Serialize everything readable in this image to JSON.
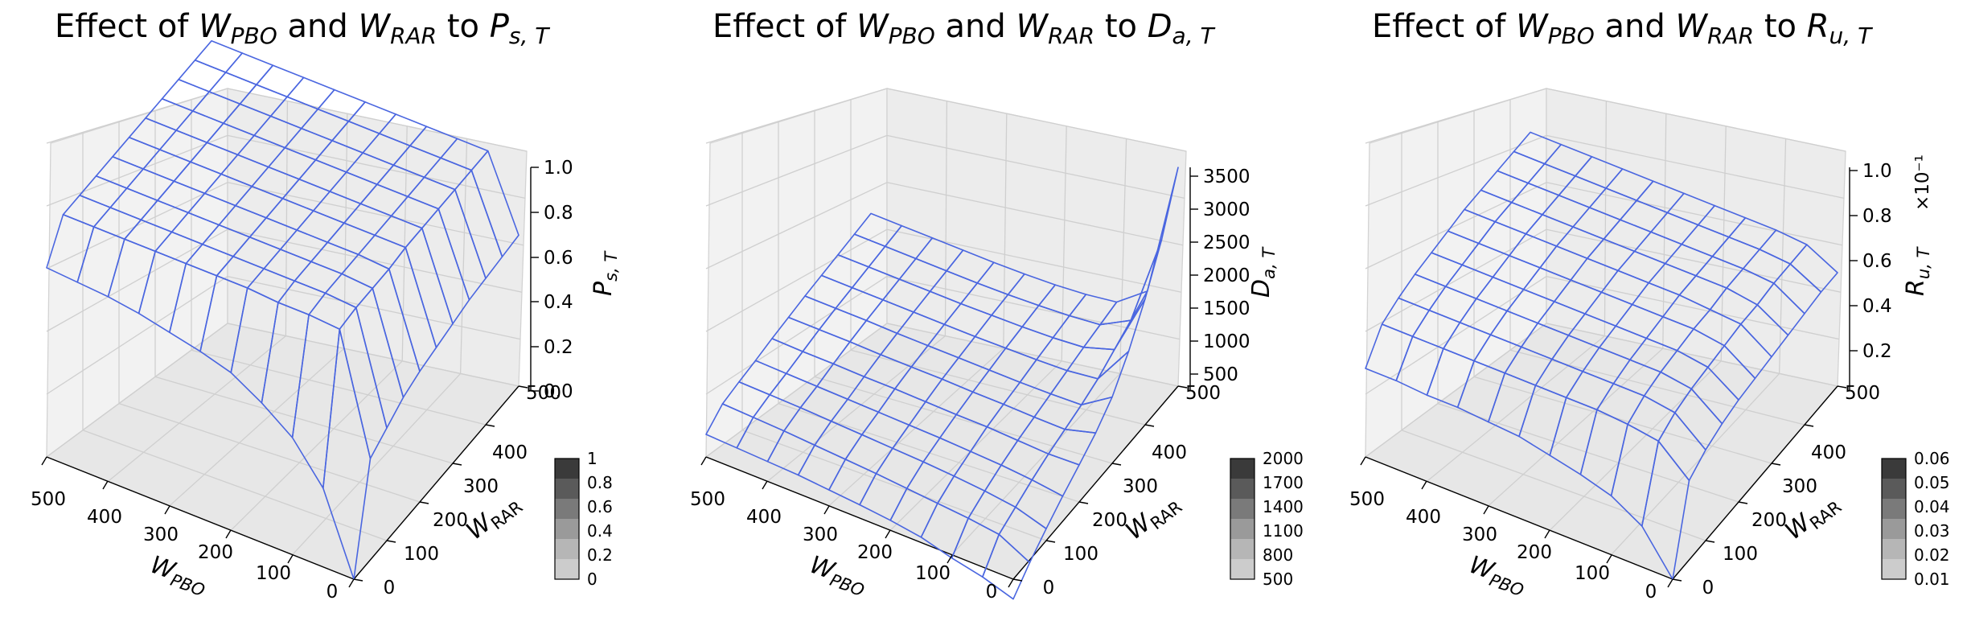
{
  "charts": [
    {
      "title_prefix": "Effect of ",
      "title_w1": "W",
      "title_w1_sub": "PBO",
      "title_mid": " and ",
      "title_w2": "W",
      "title_w2_sub": "RAR",
      "title_to": " to ",
      "title_var": "P",
      "title_var_sub": "s, T",
      "xlabel_base": "W",
      "xlabel_sub": "PBO",
      "ylabel_base": "W",
      "ylabel_sub": "RAR",
      "zlabel_base": "P",
      "zlabel_sub": "s, T",
      "z_multiplier": "",
      "x_ticks": [
        "500",
        "400",
        "300",
        "200",
        "100",
        "0"
      ],
      "y_ticks": [
        "0",
        "100",
        "200",
        "300",
        "400",
        "500"
      ],
      "z_ticks": [
        "0.0",
        "0.2",
        "0.4",
        "0.6",
        "0.8",
        "1.0"
      ],
      "colorbar_ticks": [
        "0",
        "0.2",
        "0.4",
        "0.6",
        "0.8",
        "1"
      ]
    },
    {
      "title_prefix": "Effect of ",
      "title_w1": "W",
      "title_w1_sub": "PBO",
      "title_mid": " and ",
      "title_w2": "W",
      "title_w2_sub": "RAR",
      "title_to": " to ",
      "title_var": "D",
      "title_var_sub": "a, T",
      "xlabel_base": "W",
      "xlabel_sub": "PBO",
      "ylabel_base": "W",
      "ylabel_sub": "RAR",
      "zlabel_base": "D",
      "zlabel_sub": "a, T",
      "z_multiplier": "",
      "x_ticks": [
        "500",
        "400",
        "300",
        "200",
        "100",
        "0"
      ],
      "y_ticks": [
        "0",
        "100",
        "200",
        "300",
        "400",
        "500"
      ],
      "z_ticks": [
        "500",
        "1000",
        "1500",
        "2000",
        "2500",
        "3000",
        "3500"
      ],
      "colorbar_ticks": [
        "500",
        "800",
        "1100",
        "1400",
        "1700",
        "2000"
      ]
    },
    {
      "title_prefix": "Effect of ",
      "title_w1": "W",
      "title_w1_sub": "PBO",
      "title_mid": " and ",
      "title_w2": "W",
      "title_w2_sub": "RAR",
      "title_to": " to ",
      "title_var": "R",
      "title_var_sub": "u, T",
      "xlabel_base": "W",
      "xlabel_sub": "PBO",
      "ylabel_base": "W",
      "ylabel_sub": "RAR",
      "zlabel_base": "R",
      "zlabel_sub": "u, T",
      "z_multiplier": "×10⁻¹",
      "x_ticks": [
        "500",
        "400",
        "300",
        "200",
        "100",
        "0"
      ],
      "y_ticks": [
        "0",
        "100",
        "200",
        "300",
        "400",
        "500"
      ],
      "z_ticks": [
        "0.2",
        "0.4",
        "0.6",
        "0.8",
        "1.0"
      ],
      "colorbar_ticks": [
        "0.01",
        "0.02",
        "0.03",
        "0.04",
        "0.05",
        "0.06"
      ]
    }
  ],
  "chart_data": [
    {
      "type": "surface",
      "x": [
        0,
        50,
        100,
        150,
        200,
        250,
        300,
        350,
        400,
        450,
        500
      ],
      "y": [
        0,
        50,
        100,
        150,
        200,
        250,
        300,
        350,
        400,
        450,
        500
      ],
      "z": [
        [
          0.0,
          0.35,
          0.52,
          0.62,
          0.7,
          0.74,
          0.77,
          0.8,
          0.82,
          0.83,
          0.84
        ],
        [
          0.45,
          0.97,
          0.98,
          0.98,
          0.99,
          0.99,
          0.99,
          0.99,
          0.99,
          0.99,
          0.99
        ],
        [
          0.5,
          0.98,
          0.99,
          0.99,
          0.99,
          0.99,
          0.99,
          0.99,
          0.99,
          0.99,
          0.99
        ],
        [
          0.55,
          0.98,
          0.99,
          0.99,
          0.99,
          0.99,
          0.99,
          0.99,
          0.99,
          0.99,
          0.99
        ],
        [
          0.58,
          0.98,
          0.99,
          0.99,
          0.99,
          0.99,
          0.99,
          0.99,
          0.99,
          0.99,
          0.99
        ],
        [
          0.6,
          0.99,
          0.99,
          0.99,
          0.99,
          0.99,
          0.99,
          0.99,
          0.99,
          0.99,
          0.99
        ],
        [
          0.62,
          0.99,
          0.99,
          0.99,
          0.99,
          0.99,
          0.99,
          0.99,
          0.99,
          0.99,
          0.99
        ],
        [
          0.64,
          0.99,
          0.99,
          0.99,
          0.99,
          0.99,
          0.99,
          0.99,
          0.99,
          0.99,
          0.99
        ],
        [
          0.65,
          0.99,
          0.99,
          0.99,
          0.99,
          0.99,
          0.99,
          0.99,
          0.99,
          0.99,
          0.99
        ],
        [
          0.66,
          0.99,
          0.99,
          0.99,
          0.99,
          0.99,
          0.99,
          0.99,
          0.99,
          0.99,
          0.99
        ],
        [
          0.67,
          0.99,
          0.99,
          0.99,
          0.99,
          0.99,
          0.99,
          0.99,
          0.99,
          0.99,
          0.99
        ]
      ],
      "xlim": [
        0,
        500
      ],
      "ylim": [
        0,
        500
      ],
      "zlim": [
        0,
        1
      ],
      "colorbar_range": [
        0,
        1
      ],
      "grid": true
    },
    {
      "type": "surface",
      "x": [
        0,
        50,
        100,
        150,
        200,
        250,
        300,
        350,
        400,
        450,
        500
      ],
      "y": [
        0,
        50,
        100,
        150,
        200,
        250,
        300,
        350,
        400,
        450,
        500
      ],
      "z": [
        [
          0,
          150,
          250,
          380,
          450,
          500,
          540,
          580,
          600,
          620,
          640
        ],
        [
          260,
          500,
          560,
          600,
          640,
          680,
          710,
          740,
          770,
          790,
          810
        ],
        [
          480,
          620,
          680,
          720,
          750,
          770,
          790,
          810,
          830,
          840,
          850
        ],
        [
          680,
          740,
          780,
          800,
          820,
          830,
          840,
          850,
          860,
          870,
          880
        ],
        [
          860,
          840,
          860,
          880,
          880,
          890,
          900,
          900,
          910,
          910,
          920
        ],
        [
          1050,
          920,
          920,
          930,
          930,
          940,
          940,
          940,
          950,
          950,
          950
        ],
        [
          1300,
          1000,
          980,
          970,
          970,
          970,
          970,
          970,
          980,
          980,
          980
        ],
        [
          1700,
          1100,
          1040,
          1020,
          1010,
          1000,
          1000,
          1000,
          1000,
          1000,
          1000
        ],
        [
          2200,
          1250,
          1100,
          1060,
          1040,
          1030,
          1020,
          1020,
          1020,
          1020,
          1020
        ],
        [
          2800,
          1400,
          1150,
          1100,
          1070,
          1050,
          1040,
          1040,
          1040,
          1040,
          1040
        ],
        [
          3600,
          1550,
          1200,
          1130,
          1090,
          1070,
          1060,
          1060,
          1060,
          1060,
          1060
        ]
      ],
      "xlim": [
        0,
        500
      ],
      "ylim": [
        0,
        500
      ],
      "zlim": [
        300,
        3700
      ],
      "colorbar_range": [
        500,
        2000
      ],
      "grid": true
    },
    {
      "type": "surface",
      "x": [
        0,
        50,
        100,
        150,
        200,
        250,
        300,
        350,
        400,
        450,
        500
      ],
      "y": [
        0,
        50,
        100,
        150,
        200,
        250,
        300,
        350,
        400,
        450,
        500
      ],
      "z": [
        [
          0.0,
          0.018,
          0.026,
          0.03,
          0.033,
          0.036,
          0.037,
          0.038,
          0.038,
          0.039,
          0.039
        ],
        [
          0.035,
          0.047,
          0.049,
          0.05,
          0.05,
          0.05,
          0.05,
          0.05,
          0.05,
          0.05,
          0.05
        ],
        [
          0.04,
          0.051,
          0.053,
          0.053,
          0.053,
          0.053,
          0.053,
          0.053,
          0.053,
          0.053,
          0.053
        ],
        [
          0.043,
          0.053,
          0.055,
          0.055,
          0.055,
          0.055,
          0.055,
          0.055,
          0.055,
          0.055,
          0.055
        ],
        [
          0.045,
          0.054,
          0.056,
          0.056,
          0.056,
          0.056,
          0.056,
          0.056,
          0.056,
          0.056,
          0.056
        ],
        [
          0.046,
          0.055,
          0.057,
          0.057,
          0.057,
          0.057,
          0.057,
          0.057,
          0.057,
          0.057,
          0.057
        ],
        [
          0.047,
          0.056,
          0.057,
          0.058,
          0.058,
          0.058,
          0.058,
          0.058,
          0.058,
          0.058,
          0.058
        ],
        [
          0.048,
          0.056,
          0.058,
          0.058,
          0.058,
          0.058,
          0.058,
          0.058,
          0.058,
          0.058,
          0.058
        ],
        [
          0.049,
          0.057,
          0.058,
          0.058,
          0.058,
          0.058,
          0.058,
          0.058,
          0.058,
          0.058,
          0.058
        ],
        [
          0.05,
          0.057,
          0.058,
          0.058,
          0.058,
          0.058,
          0.058,
          0.058,
          0.058,
          0.058,
          0.058
        ],
        [
          0.05,
          0.057,
          0.058,
          0.058,
          0.058,
          0.058,
          0.058,
          0.058,
          0.058,
          0.058,
          0.058
        ]
      ],
      "xlim": [
        0,
        500
      ],
      "ylim": [
        0,
        500
      ],
      "zlim": [
        0,
        0.1
      ],
      "colorbar_range": [
        0.01,
        0.06
      ],
      "grid": true
    }
  ]
}
